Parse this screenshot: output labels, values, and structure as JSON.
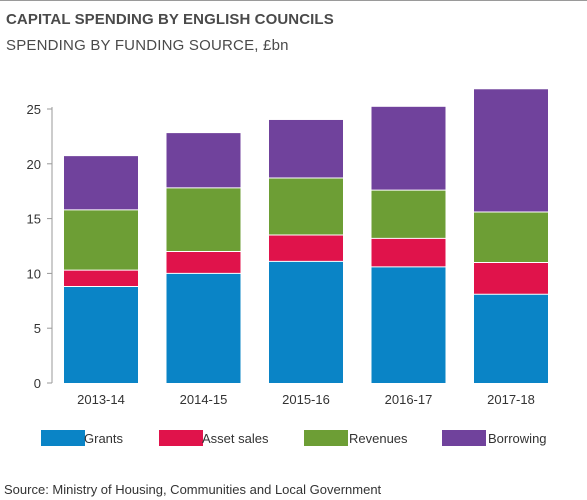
{
  "header": {
    "title": "CAPITAL SPENDING BY ENGLISH COUNCILS",
    "subtitle": "SPENDING BY FUNDING SOURCE, £bn"
  },
  "footer": {
    "source": "Source: Ministry of Housing, Communities and Local Government"
  },
  "legend": [
    {
      "label": "Grants",
      "color": "#0a84c6"
    },
    {
      "label": "Asset sales",
      "color": "#e0134b"
    },
    {
      "label": "Revenues",
      "color": "#6d9e35"
    },
    {
      "label": "Borrowing",
      "color": "#70429c"
    }
  ],
  "chart_data": {
    "type": "bar",
    "stacked": true,
    "title": "CAPITAL SPENDING BY ENGLISH COUNCILS",
    "subtitle": "SPENDING BY FUNDING SOURCE, £bn",
    "categories": [
      "2013-14",
      "2014-15",
      "2015-16",
      "2016-17",
      "2017-18"
    ],
    "series": [
      {
        "name": "Grants",
        "color": "#0a84c6",
        "values": [
          8.8,
          10.0,
          11.1,
          10.6,
          8.1
        ]
      },
      {
        "name": "Asset sales",
        "color": "#e0134b",
        "values": [
          1.5,
          2.0,
          2.4,
          2.6,
          2.9
        ]
      },
      {
        "name": "Revenues",
        "color": "#6d9e35",
        "values": [
          5.5,
          5.8,
          5.2,
          4.4,
          4.6
        ]
      },
      {
        "name": "Borrowing",
        "color": "#70429c",
        "values": [
          4.9,
          5.0,
          5.3,
          7.6,
          11.2
        ]
      }
    ],
    "ylim": [
      0,
      25
    ],
    "yticks": [
      0,
      5,
      10,
      15,
      20,
      25
    ],
    "grid": false,
    "legend_position": "bottom"
  }
}
